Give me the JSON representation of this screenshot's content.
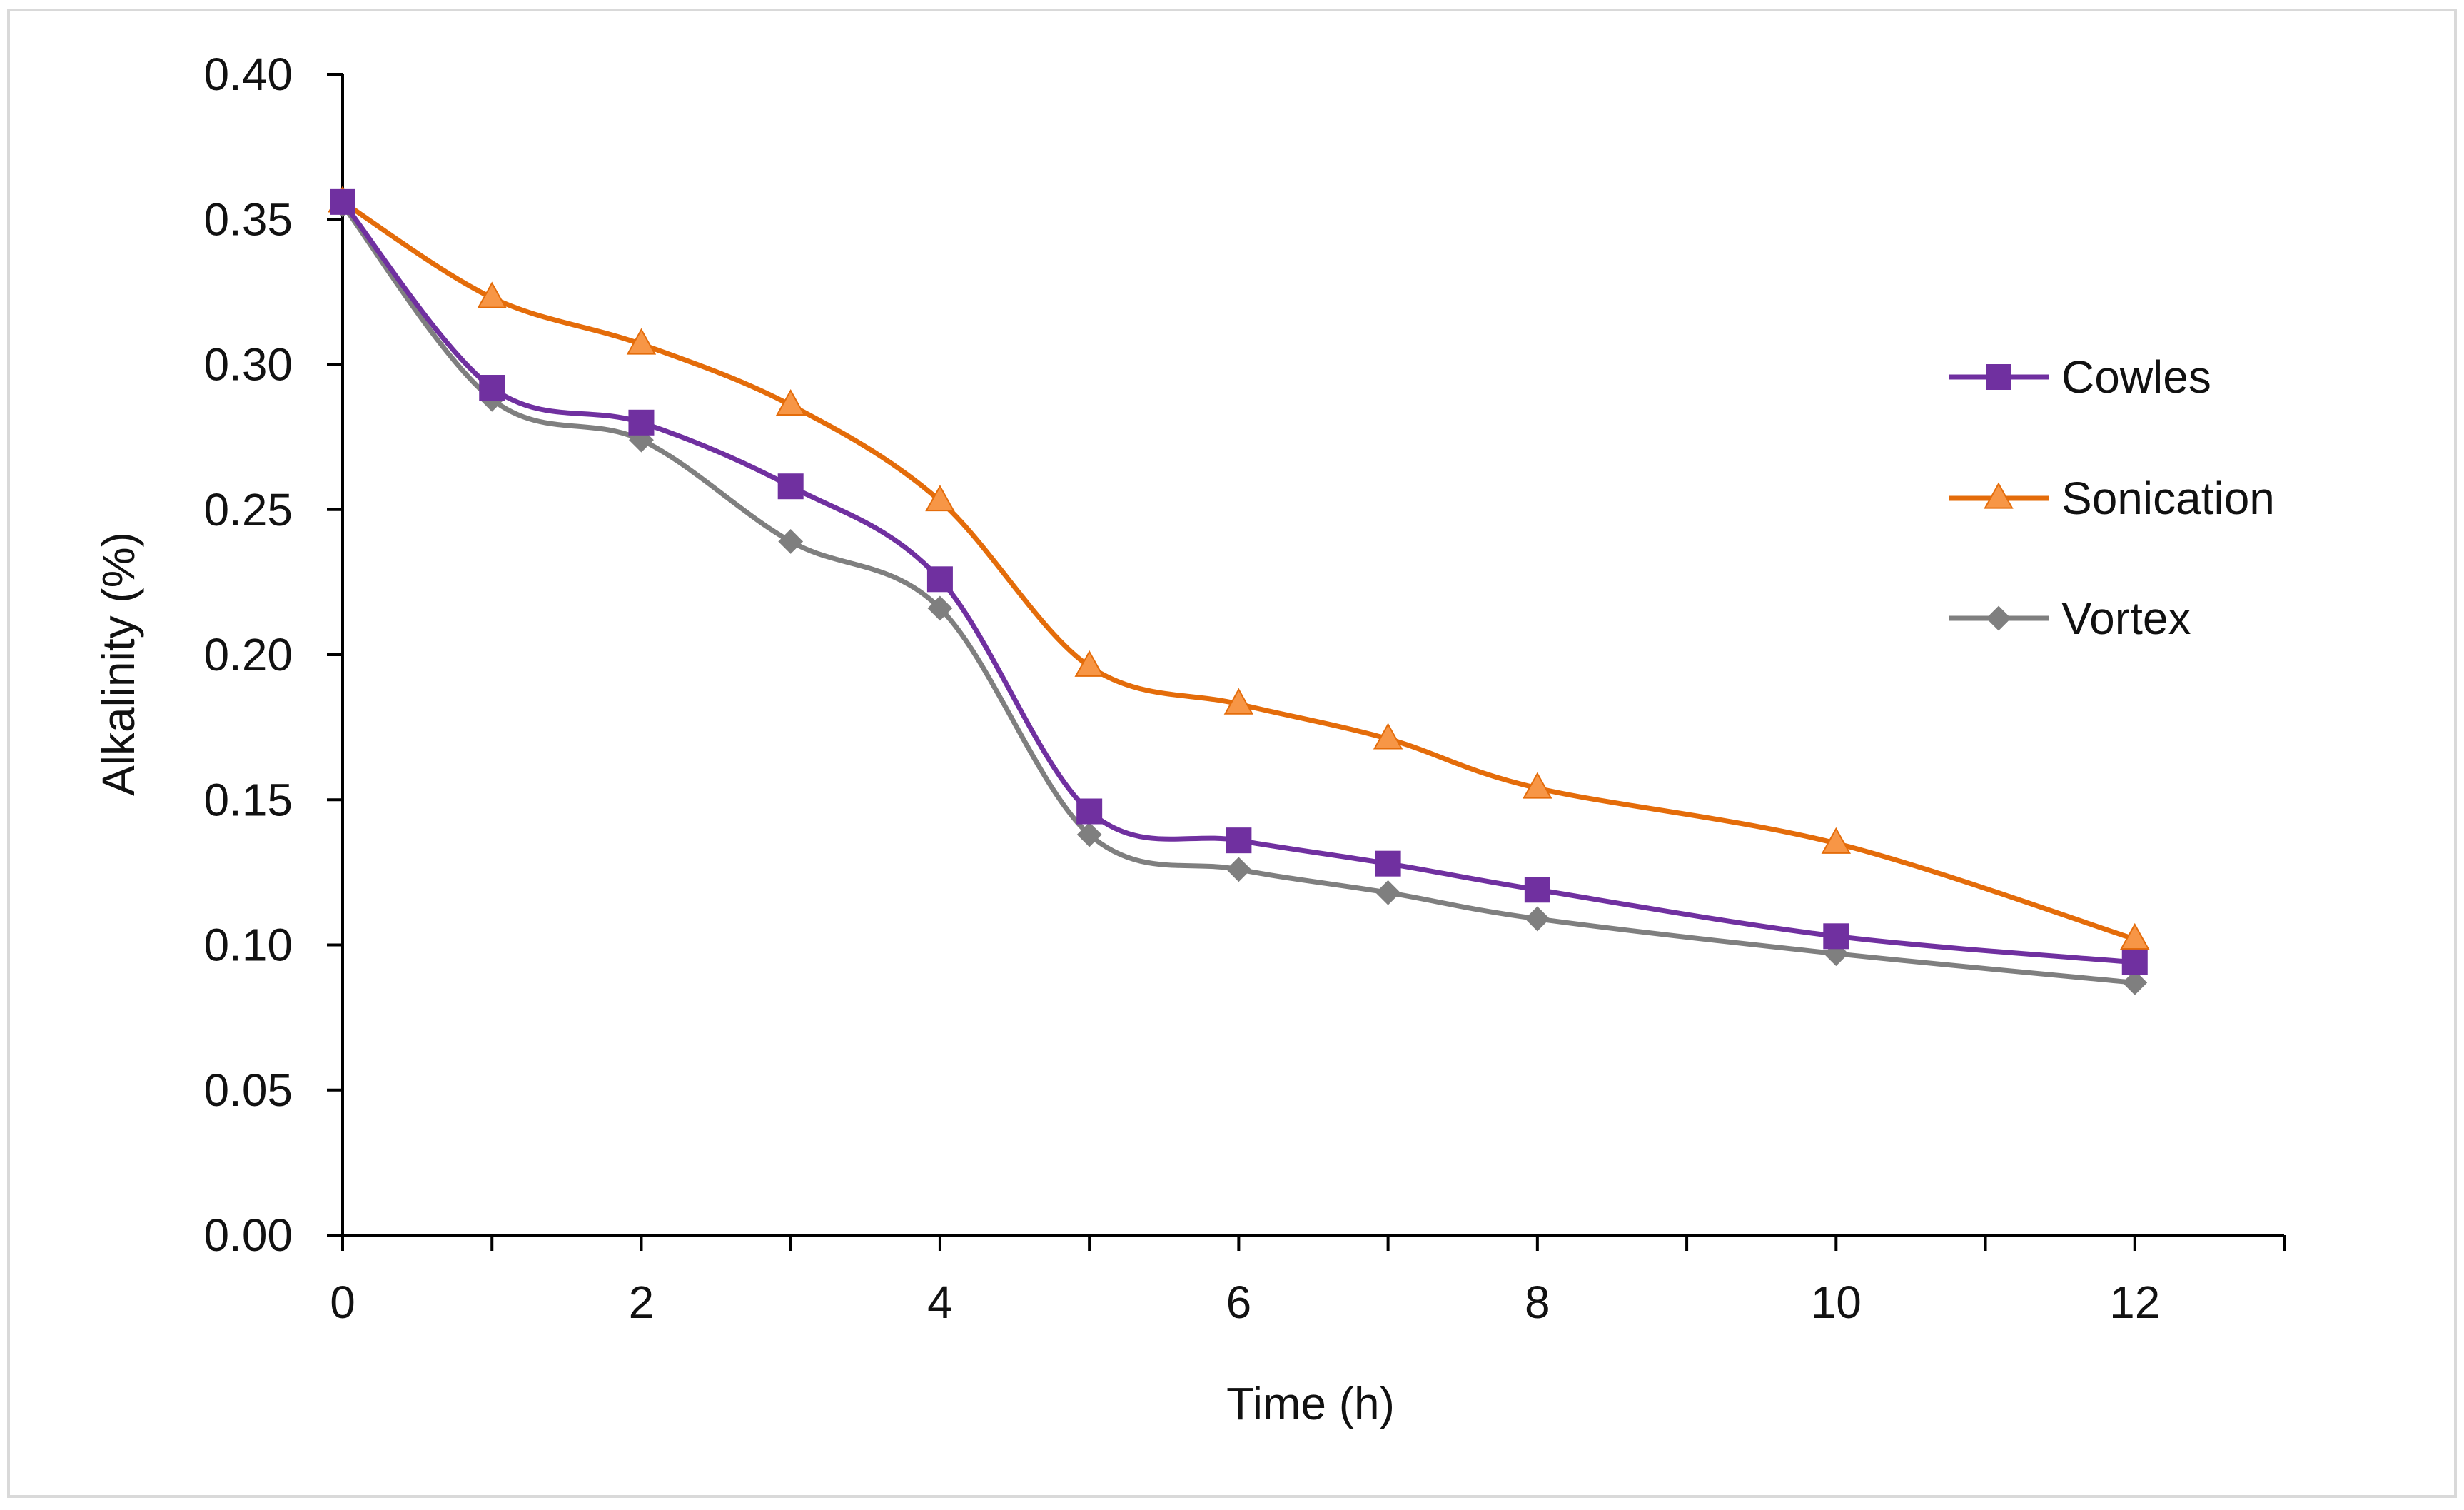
{
  "chart_data": {
    "type": "line",
    "title": "",
    "xlabel": "Time (h)",
    "ylabel": "Alkalinity (%)",
    "xlim": [
      0,
      13
    ],
    "ylim": [
      0,
      0.4
    ],
    "x_ticks": [
      "0",
      "2",
      "4",
      "6",
      "8",
      "10",
      "12"
    ],
    "y_ticks": [
      "0.00",
      "0.05",
      "0.10",
      "0.15",
      "0.20",
      "0.25",
      "0.30",
      "0.35",
      "0.40"
    ],
    "x": [
      0,
      1,
      2,
      3,
      4,
      5,
      6,
      7,
      8,
      10,
      12
    ],
    "legend_position": "right",
    "grid": false,
    "series": [
      {
        "name": "Cowles",
        "color": "#7030a0",
        "marker": "square",
        "values": [
          0.356,
          0.292,
          0.28,
          0.258,
          0.226,
          0.146,
          0.136,
          0.128,
          0.119,
          0.103,
          0.094
        ]
      },
      {
        "name": "Sonication",
        "color": "#e46c0a",
        "marker": "triangle",
        "values": [
          0.356,
          0.323,
          0.307,
          0.286,
          0.253,
          0.196,
          0.183,
          0.171,
          0.154,
          0.135,
          0.102
        ]
      },
      {
        "name": "Vortex",
        "color": "#7f7f7f",
        "marker": "diamond",
        "values": [
          0.355,
          0.288,
          0.274,
          0.239,
          0.216,
          0.138,
          0.126,
          0.118,
          0.109,
          0.097,
          0.087
        ]
      }
    ]
  }
}
